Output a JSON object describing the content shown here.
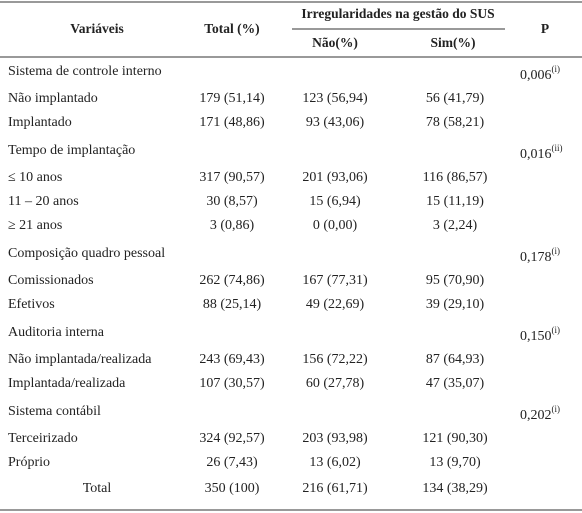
{
  "header": {
    "variables": "Variáveis",
    "total": "Total (%)",
    "group": "Irregularidades na gestão do SUS",
    "no": "Não(%)",
    "yes": "Sim(%)",
    "p": "P"
  },
  "sections": [
    {
      "title": "Sistema de controle interno",
      "p": "0,006",
      "p_note": "(i)",
      "rows": [
        [
          "Não implantado",
          "179 (51,14)",
          "123 (56,94)",
          "56 (41,79)"
        ],
        [
          "Implantado",
          "171 (48,86)",
          "93 (43,06)",
          "78 (58,21)"
        ]
      ]
    },
    {
      "title": "Tempo de implantação",
      "p": "0,016",
      "p_note": "(ii)",
      "rows": [
        [
          "≤ 10 anos",
          "317 (90,57)",
          "201 (93,06)",
          "116 (86,57)"
        ],
        [
          "11 – 20 anos",
          "30 (8,57)",
          "15 (6,94)",
          "15 (11,19)"
        ],
        [
          "≥ 21 anos",
          "3 (0,86)",
          "0 (0,00)",
          "3 (2,24)"
        ]
      ]
    },
    {
      "title": "Composição quadro pessoal",
      "p": "0,178",
      "p_note": "(i)",
      "rows": [
        [
          "Comissionados",
          "262 (74,86)",
          "167 (77,31)",
          "95 (70,90)"
        ],
        [
          "Efetivos",
          "88 (25,14)",
          "49 (22,69)",
          "39 (29,10)"
        ]
      ]
    },
    {
      "title": "Auditoria interna",
      "p": "0,150",
      "p_note": "(i)",
      "rows": [
        [
          "Não implantada/realizada",
          "243 (69,43)",
          "156 (72,22)",
          "87 (64,93)"
        ],
        [
          "Implantada/realizada",
          "107 (30,57)",
          "60 (27,78)",
          "47 (35,07)"
        ]
      ]
    },
    {
      "title": "Sistema contábil",
      "p": "0,202",
      "p_note": "(i)",
      "rows": [
        [
          "Terceirizado",
          "324 (92,57)",
          "203 (93,98)",
          "121 (90,30)"
        ],
        [
          "Próprio",
          "26 (7,43)",
          "13 (6,02)",
          "13 (9,70)"
        ]
      ]
    }
  ],
  "total": [
    "Total",
    "350 (100)",
    "216 (61,71)",
    "134 (38,29)"
  ]
}
